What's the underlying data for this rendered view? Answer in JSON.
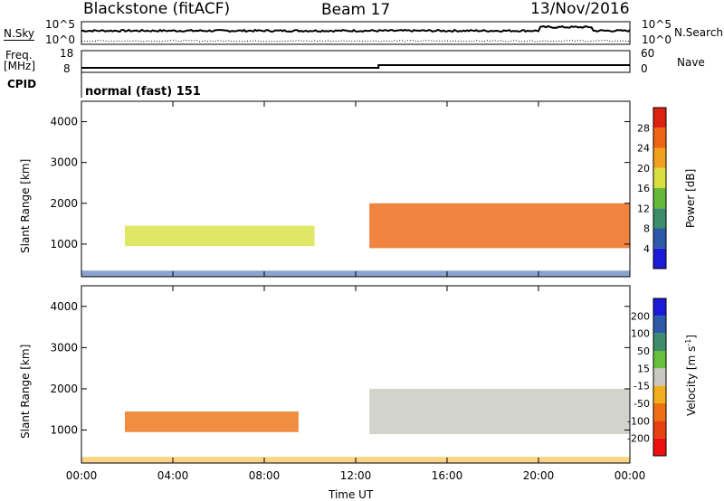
{
  "header": {
    "station": "Blackstone (fitACF)",
    "beam": "Beam 17",
    "date": "13/Nov/2016"
  },
  "strip": {
    "nsky_label": "N.Sky",
    "nsky_ticks": [
      "10^5",
      "10^0"
    ],
    "nsearch_label": "N.Search",
    "nsearch_ticks": [
      "10^5",
      "10^0"
    ],
    "freq_label": "Freq.",
    "freq_unit": "[MHz]",
    "freq_ticks": [
      "18",
      "8"
    ],
    "nave_label": "Nave",
    "nave_ticks": [
      "60",
      "0"
    ],
    "cpid_label": "CPID",
    "cpid_value": "normal (fast) 151"
  },
  "chart_data": [
    {
      "type": "heatmap",
      "name": "power",
      "ylabel": "Slant Range [km]",
      "yticks": [
        "1000",
        "2000",
        "3000",
        "4000"
      ],
      "ylim": [
        200,
        4500
      ],
      "xlim": [
        0,
        24
      ],
      "colorbar_label": "Power [dB]",
      "colorbar_ticks": [
        "4",
        "8",
        "12",
        "16",
        "20",
        "24",
        "28"
      ],
      "colorbar_range": [
        0,
        32
      ],
      "colorbar_colors": [
        "#1a1ad8",
        "#2c5aa8",
        "#3d8c6a",
        "#66b83c",
        "#d8e040",
        "#f2a020",
        "#ee6412",
        "#dd2010"
      ],
      "echo_bands": [
        {
          "t_start": 1.9,
          "t_end": 10.2,
          "range_low": 950,
          "range_high": 1450,
          "power_db": 17
        },
        {
          "t_start": 12.6,
          "t_end": 24.0,
          "range_low": 900,
          "range_high": 2000,
          "power_db": 26
        },
        {
          "t_start": 0.0,
          "t_end": 24.0,
          "range_low": 200,
          "range_high": 350,
          "power_db": 6
        }
      ]
    },
    {
      "type": "heatmap",
      "name": "velocity",
      "ylabel": "Slant Range [km]",
      "yticks": [
        "1000",
        "2000",
        "3000",
        "4000"
      ],
      "ylim": [
        200,
        4500
      ],
      "xlabel": "Time UT",
      "xticks": [
        "00:00",
        "04:00",
        "08:00",
        "12:00",
        "16:00",
        "20:00",
        "00:00"
      ],
      "xlim": [
        0,
        24
      ],
      "colorbar_label": "Velocity [m s^-1]",
      "colorbar_ticks": [
        "200",
        "100",
        "50",
        "15",
        "-15",
        "-50",
        "-100",
        "-200"
      ],
      "colorbar_range": [
        -250,
        250
      ],
      "colorbar_colors": [
        "#1a1ad8",
        "#2c5aa8",
        "#3d8c6a",
        "#66c03c",
        "#c8c8c0",
        "#f2b020",
        "#ee7012",
        "#e84010",
        "#ee1010"
      ],
      "echo_bands": [
        {
          "t_start": 1.9,
          "t_end": 9.5,
          "range_low": 950,
          "range_high": 1450,
          "velocity": -90
        },
        {
          "t_start": 12.6,
          "t_end": 24.0,
          "range_low": 900,
          "range_high": 2000,
          "velocity": 0
        },
        {
          "t_start": 0.0,
          "t_end": 24.0,
          "range_low": 200,
          "range_high": 350,
          "velocity": -40
        }
      ]
    }
  ]
}
